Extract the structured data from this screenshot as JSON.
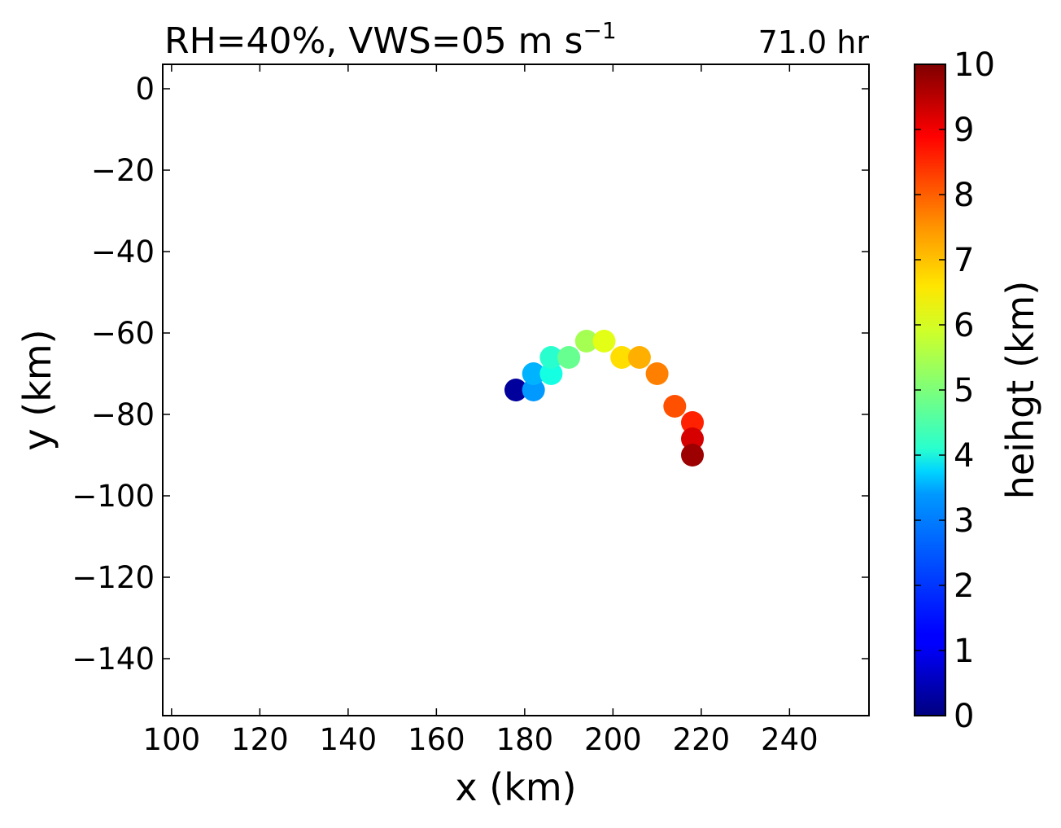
{
  "chart_data": {
    "type": "scatter",
    "title": "RH=40%, VWS=05 m s",
    "title_superscript": "−1",
    "time_label": "71.0 hr",
    "time_label_color": "#0000ff",
    "xlabel": "x (km)",
    "ylabel": "y (km)",
    "xlim": [
      98,
      258
    ],
    "ylim": [
      -154,
      6
    ],
    "xticks": [
      100,
      120,
      140,
      160,
      180,
      200,
      220,
      240
    ],
    "xtick_labels": [
      "100",
      "120",
      "140",
      "160",
      "180",
      "200",
      "220",
      "240"
    ],
    "yticks": [
      0,
      -20,
      -40,
      -60,
      -80,
      -100,
      -120,
      -140
    ],
    "ytick_labels": [
      "0",
      "−20",
      "−40",
      "−60",
      "−80",
      "−100",
      "−120",
      "−140"
    ],
    "grid": false,
    "colormap": "jet",
    "colorbar": {
      "label": "heihgt (km)",
      "range": [
        0,
        10
      ],
      "ticks": [
        0,
        1,
        2,
        3,
        4,
        5,
        6,
        7,
        8,
        9,
        10
      ],
      "tick_labels": [
        "0",
        "1",
        "2",
        "3",
        "4",
        "5",
        "6",
        "7",
        "8",
        "9",
        "10"
      ]
    },
    "points": [
      {
        "x": 178,
        "y": -74,
        "height": 0.25
      },
      {
        "x": 182,
        "y": -74,
        "height": 2.75
      },
      {
        "x": 182,
        "y": -70,
        "height": 3.0
      },
      {
        "x": 186,
        "y": -70,
        "height": 3.75
      },
      {
        "x": 186,
        "y": -66,
        "height": 4.0
      },
      {
        "x": 190,
        "y": -66,
        "height": 4.75
      },
      {
        "x": 194,
        "y": -62,
        "height": 5.5
      },
      {
        "x": 198,
        "y": -62,
        "height": 6.25
      },
      {
        "x": 202,
        "y": -66,
        "height": 6.75
      },
      {
        "x": 206,
        "y": -66,
        "height": 7.25
      },
      {
        "x": 210,
        "y": -70,
        "height": 7.75
      },
      {
        "x": 214,
        "y": -78,
        "height": 8.25
      },
      {
        "x": 218,
        "y": -82,
        "height": 8.75
      },
      {
        "x": 218,
        "y": -86,
        "height": 9.25
      },
      {
        "x": 218,
        "y": -90,
        "height": 9.75
      }
    ]
  }
}
